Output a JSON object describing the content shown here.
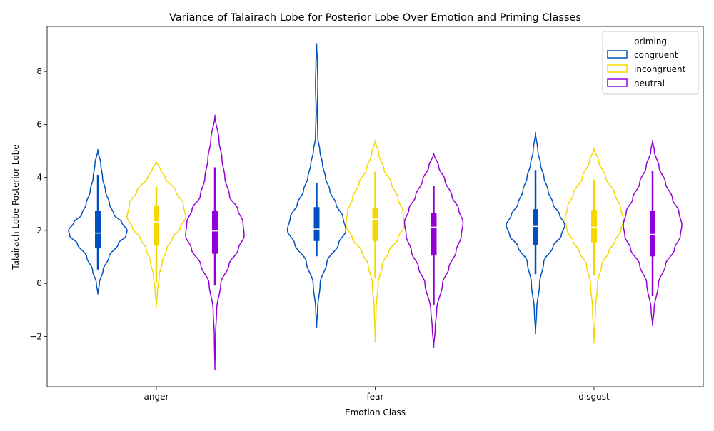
{
  "chart_data": {
    "type": "violin",
    "title": "Variance of Talairach Lobe for Posterior Lobe Over Emotion and Priming Classes",
    "xlabel": "Emotion Class",
    "ylabel": "Talairach Lobe Posterior Lobe",
    "categories": [
      "anger",
      "fear",
      "disgust"
    ],
    "ylim": [
      -3.9,
      9.7
    ],
    "yticks": [
      -2,
      0,
      2,
      4,
      6,
      8
    ],
    "ytick_labels": [
      "−2",
      "0",
      "2",
      "4",
      "6",
      "8"
    ],
    "grid": false,
    "legend": {
      "title": "priming",
      "placement": "top-right",
      "entries": [
        "congruent",
        "incongruent",
        "neutral"
      ]
    },
    "series": [
      {
        "name": "congruent",
        "color": "#0050c0",
        "groups": [
          {
            "category": "anger",
            "min": -0.4,
            "max": 5.05,
            "q1": 1.32,
            "median": 1.9,
            "q3": 2.75,
            "whisker_low": 0.52,
            "whisker_high": 4.1,
            "density": [
              [
                -0.4,
                0
              ],
              [
                0.0,
                0.05
              ],
              [
                0.5,
                0.18
              ],
              [
                1.0,
                0.38
              ],
              [
                1.5,
                0.7
              ],
              [
                1.8,
                0.96
              ],
              [
                2.0,
                1.0
              ],
              [
                2.3,
                0.82
              ],
              [
                2.6,
                0.55
              ],
              [
                3.0,
                0.4
              ],
              [
                3.5,
                0.26
              ],
              [
                4.0,
                0.16
              ],
              [
                4.5,
                0.1
              ],
              [
                5.05,
                0
              ]
            ]
          },
          {
            "category": "fear",
            "min": -1.65,
            "max": 9.05,
            "q1": 1.6,
            "median": 2.05,
            "q3": 2.88,
            "whisker_low": 1.02,
            "whisker_high": 3.78,
            "density": [
              [
                -1.65,
                0
              ],
              [
                -1.0,
                0.03
              ],
              [
                0.0,
                0.12
              ],
              [
                0.8,
                0.35
              ],
              [
                1.5,
                0.75
              ],
              [
                2.0,
                1.0
              ],
              [
                2.5,
                0.9
              ],
              [
                3.0,
                0.66
              ],
              [
                3.5,
                0.45
              ],
              [
                4.0,
                0.3
              ],
              [
                4.5,
                0.2
              ],
              [
                5.0,
                0.11
              ],
              [
                5.5,
                0.04
              ],
              [
                6.5,
                0.02
              ],
              [
                7.5,
                0.04
              ],
              [
                8.3,
                0.025
              ],
              [
                9.05,
                0
              ]
            ]
          },
          {
            "category": "disgust",
            "min": -1.9,
            "max": 5.7,
            "q1": 1.45,
            "median": 2.15,
            "q3": 2.8,
            "whisker_low": 0.35,
            "whisker_high": 4.28,
            "density": [
              [
                -1.9,
                0
              ],
              [
                -1.0,
                0.04
              ],
              [
                0.0,
                0.14
              ],
              [
                0.8,
                0.28
              ],
              [
                1.4,
                0.6
              ],
              [
                1.8,
                0.88
              ],
              [
                2.2,
                1.0
              ],
              [
                2.6,
                0.82
              ],
              [
                3.0,
                0.6
              ],
              [
                3.5,
                0.43
              ],
              [
                4.0,
                0.29
              ],
              [
                4.5,
                0.17
              ],
              [
                5.0,
                0.08
              ],
              [
                5.7,
                0
              ]
            ]
          }
        ]
      },
      {
        "name": "incongruent",
        "color": "#f5d800",
        "groups": [
          {
            "category": "anger",
            "min": -0.88,
            "max": 4.6,
            "q1": 1.42,
            "median": 2.32,
            "q3": 2.93,
            "whisker_low": 0.05,
            "whisker_high": 3.65,
            "density": [
              [
                -0.88,
                0
              ],
              [
                -0.3,
                0.04
              ],
              [
                0.3,
                0.1
              ],
              [
                0.8,
                0.2
              ],
              [
                1.3,
                0.35
              ],
              [
                1.7,
                0.55
              ],
              [
                2.1,
                0.82
              ],
              [
                2.5,
                1.0
              ],
              [
                3.0,
                0.92
              ],
              [
                3.5,
                0.66
              ],
              [
                4.0,
                0.3
              ],
              [
                4.3,
                0.14
              ],
              [
                4.6,
                0
              ]
            ]
          },
          {
            "category": "fear",
            "min": -2.2,
            "max": 5.4,
            "q1": 1.6,
            "median": 2.42,
            "q3": 2.83,
            "whisker_low": 0.22,
            "whisker_high": 4.22,
            "density": [
              [
                -2.2,
                0
              ],
              [
                -1.0,
                0.03
              ],
              [
                0.0,
                0.1
              ],
              [
                0.7,
                0.24
              ],
              [
                1.2,
                0.46
              ],
              [
                1.7,
                0.78
              ],
              [
                2.2,
                1.0
              ],
              [
                2.7,
                0.95
              ],
              [
                3.2,
                0.78
              ],
              [
                3.8,
                0.55
              ],
              [
                4.3,
                0.3
              ],
              [
                4.9,
                0.12
              ],
              [
                5.4,
                0
              ]
            ]
          },
          {
            "category": "disgust",
            "min": -2.25,
            "max": 5.1,
            "q1": 1.55,
            "median": 2.12,
            "q3": 2.78,
            "whisker_low": 0.3,
            "whisker_high": 3.92,
            "density": [
              [
                -2.25,
                0
              ],
              [
                -1.0,
                0.05
              ],
              [
                0.0,
                0.12
              ],
              [
                0.7,
                0.26
              ],
              [
                1.2,
                0.5
              ],
              [
                1.6,
                0.72
              ],
              [
                2.0,
                0.92
              ],
              [
                2.4,
                1.0
              ],
              [
                2.9,
                0.9
              ],
              [
                3.4,
                0.7
              ],
              [
                4.0,
                0.4
              ],
              [
                4.6,
                0.16
              ],
              [
                5.1,
                0
              ]
            ]
          }
        ]
      },
      {
        "name": "neutral",
        "color": "#9400d3",
        "groups": [
          {
            "category": "anger",
            "min": -3.25,
            "max": 6.35,
            "q1": 1.12,
            "median": 1.98,
            "q3": 2.75,
            "whisker_low": -0.08,
            "whisker_high": 4.38,
            "density": [
              [
                -3.25,
                0
              ],
              [
                -2.0,
                0.02
              ],
              [
                -1.0,
                0.06
              ],
              [
                0.0,
                0.2
              ],
              [
                0.7,
                0.48
              ],
              [
                1.3,
                0.8
              ],
              [
                1.8,
                1.0
              ],
              [
                2.3,
                0.96
              ],
              [
                2.8,
                0.78
              ],
              [
                3.3,
                0.5
              ],
              [
                4.0,
                0.34
              ],
              [
                4.7,
                0.24
              ],
              [
                5.4,
                0.14
              ],
              [
                6.35,
                0
              ]
            ]
          },
          {
            "category": "fear",
            "min": -2.4,
            "max": 4.92,
            "q1": 1.05,
            "median": 2.12,
            "q3": 2.65,
            "whisker_low": -0.8,
            "whisker_high": 3.68,
            "density": [
              [
                -2.4,
                0
              ],
              [
                -1.7,
                0.05
              ],
              [
                -1.0,
                0.1
              ],
              [
                0.0,
                0.3
              ],
              [
                0.6,
                0.52
              ],
              [
                1.2,
                0.76
              ],
              [
                1.8,
                0.94
              ],
              [
                2.3,
                1.0
              ],
              [
                2.8,
                0.85
              ],
              [
                3.3,
                0.62
              ],
              [
                3.9,
                0.38
              ],
              [
                4.4,
                0.17
              ],
              [
                4.92,
                0
              ]
            ]
          },
          {
            "category": "disgust",
            "min": -1.6,
            "max": 5.4,
            "q1": 1.02,
            "median": 1.85,
            "q3": 2.75,
            "whisker_low": -0.48,
            "whisker_high": 4.25,
            "density": [
              [
                -1.6,
                0
              ],
              [
                -1.0,
                0.05
              ],
              [
                0.0,
                0.2
              ],
              [
                0.7,
                0.44
              ],
              [
                1.3,
                0.75
              ],
              [
                1.8,
                0.95
              ],
              [
                2.2,
                1.0
              ],
              [
                2.7,
                0.9
              ],
              [
                3.2,
                0.68
              ],
              [
                3.8,
                0.44
              ],
              [
                4.4,
                0.22
              ],
              [
                5.0,
                0.06
              ],
              [
                5.4,
                0
              ]
            ]
          }
        ]
      }
    ]
  }
}
